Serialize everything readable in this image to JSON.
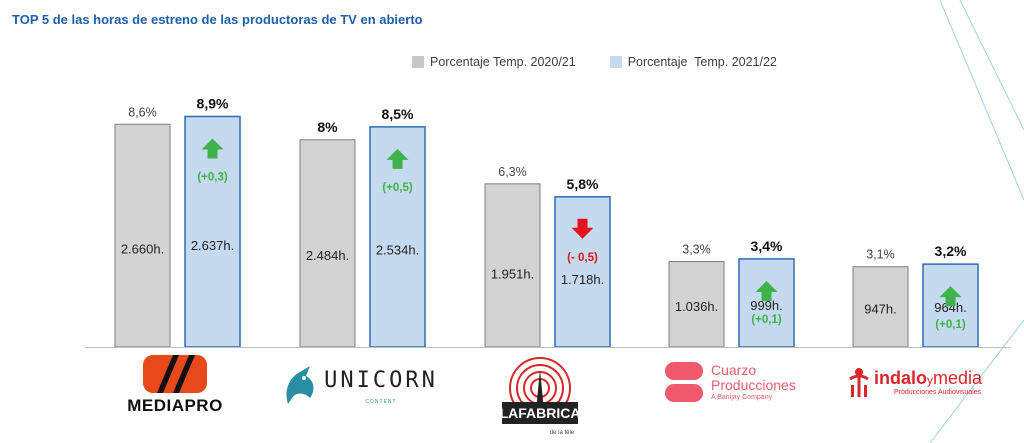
{
  "chart_data": {
    "type": "bar",
    "title": "TOP 5 de las horas de estreno de las productoras de TV en abierto",
    "categories": [
      "MEDIAPRO",
      "UNICORN",
      "LAFABRICA",
      "Cuarzo Producciones",
      "indalo y media"
    ],
    "series": [
      {
        "name": "Porcentaje Temp. 2020/21",
        "values": [
          8.6,
          8.0,
          6.3,
          3.3,
          3.1
        ],
        "pct_labels": [
          "8,6%",
          "8%",
          "6,3%",
          "3,3%",
          "3,1%"
        ],
        "hour_labels": [
          "2.660h.",
          "2.484h.",
          "1.951h.",
          "1.036h.",
          "947h."
        ],
        "color": "#d3d3d3",
        "border": "#7f7f7f"
      },
      {
        "name": "Porcentaje  Temp. 2021/22",
        "values": [
          8.9,
          8.5,
          5.8,
          3.4,
          3.2
        ],
        "pct_labels": [
          "8,9%",
          "8,5%",
          "5,8%",
          "3,4%",
          "3,2%"
        ],
        "hour_labels": [
          "2.637h.",
          "2.534h.",
          "1.718h.",
          "999h.",
          "964h."
        ],
        "color": "#c5d9ef",
        "border": "#2e6db4"
      }
    ],
    "changes": [
      {
        "label": "(+0,3)",
        "direction": "up"
      },
      {
        "label": "(+0,5)",
        "direction": "up"
      },
      {
        "label": "(- 0,5)",
        "direction": "down"
      },
      {
        "label": "(+0,1)",
        "direction": "up"
      },
      {
        "label": "(+0,1)",
        "direction": "up"
      }
    ],
    "ylim": [
      0,
      10
    ],
    "xlabel": "",
    "ylabel": "",
    "legend": "top-center",
    "grid": false
  },
  "colors": {
    "up": "#3fb24a",
    "down": "#e3141b",
    "title": "#1f5fa8"
  },
  "logos": {
    "mediapro": "MEDIAPRO",
    "unicorn": "UNICORN",
    "unicorn_sub": "CONTENT",
    "lafabrica": "LAFABRICA",
    "lafabrica_sub": "de la tele",
    "cuarzo_1": "Cuarzo",
    "cuarzo_2": "Producciones",
    "cuarzo_3": "A Banijay Company",
    "indalo_1": "indalo",
    "indalo_2": "y",
    "indalo_3": "media",
    "indalo_4": "Producciones Audiovisuales"
  }
}
